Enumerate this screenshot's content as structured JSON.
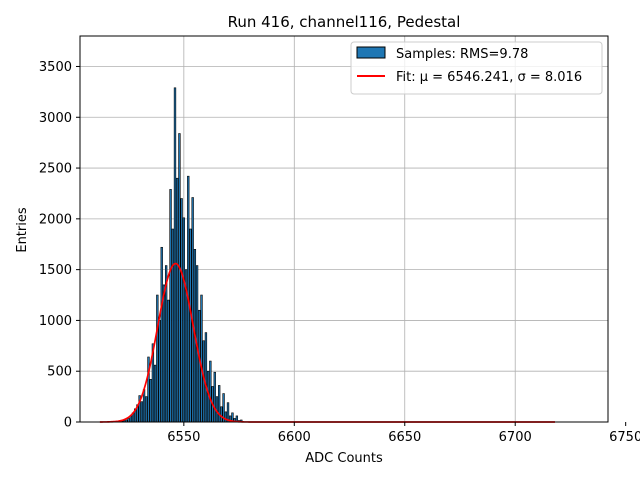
{
  "chart_data": {
    "type": "bar",
    "title": "Run 416, channel116, Pedestal",
    "xlabel": "ADC Counts",
    "ylabel": "Entries",
    "xlim": [
      6503,
      6742
    ],
    "ylim": [
      0,
      3800
    ],
    "xticks": [
      6550,
      6600,
      6650,
      6700,
      6750
    ],
    "yticks": [
      0,
      500,
      1000,
      1500,
      2000,
      2500,
      3000,
      3500
    ],
    "grid": true,
    "legend_position": "top-right",
    "bar_color": "#1f77b4",
    "bar_edge_color": "#000000",
    "fit_color": "#ff0000",
    "histogram": {
      "name": "Samples: RMS=9.78",
      "x": [
        6522,
        6523,
        6524,
        6525,
        6526,
        6527,
        6528,
        6529,
        6530,
        6531,
        6532,
        6533,
        6534,
        6535,
        6536,
        6537,
        6538,
        6539,
        6540,
        6541,
        6542,
        6543,
        6544,
        6545,
        6546,
        6547,
        6548,
        6549,
        6550,
        6551,
        6552,
        6553,
        6554,
        6555,
        6556,
        6557,
        6558,
        6559,
        6560,
        6561,
        6562,
        6563,
        6564,
        6565,
        6566,
        6567,
        6568,
        6569,
        6570,
        6571,
        6572,
        6573,
        6574,
        6575,
        6576
      ],
      "values": [
        8,
        12,
        20,
        35,
        60,
        90,
        130,
        170,
        260,
        200,
        320,
        250,
        640,
        420,
        770,
        560,
        1250,
        1000,
        1720,
        1350,
        1540,
        1200,
        2290,
        1900,
        3290,
        2400,
        2840,
        2200,
        2010,
        1500,
        2420,
        1900,
        2210,
        1700,
        1540,
        1100,
        1250,
        800,
        880,
        500,
        600,
        350,
        490,
        250,
        360,
        150,
        280,
        100,
        190,
        60,
        90,
        35,
        60,
        15,
        20
      ]
    },
    "fit": {
      "name": "Fit: μ = 6546.241, σ = 8.016",
      "mu": 6546.241,
      "sigma": 8.016,
      "amplitude": 1560,
      "x_range": [
        6512,
        6718
      ]
    }
  }
}
